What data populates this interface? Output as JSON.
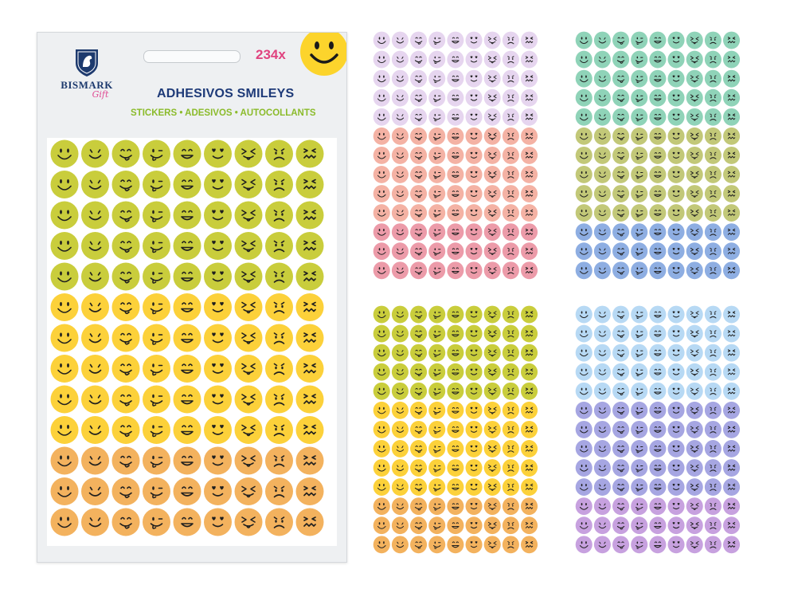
{
  "product": {
    "brand": "BISMARK",
    "brand_sub": "Gift",
    "count": "234x",
    "title": "ADHESIVOS SMILEYS",
    "subtitle": "STICKERS • ADESIVOS • AUTOCOLLANTS"
  },
  "icons": [
    "bismark-shield-icon",
    "smiley-face-icon"
  ],
  "colors": {
    "title": "#1e3a78",
    "count": "#e0437f",
    "subtitle": "#8bbb2b",
    "badge_smiley": "#fcd42c"
  },
  "face_order": [
    "big-smile",
    "smile",
    "tongue",
    "tongue-wink",
    "grin",
    "heart-eyes",
    "squint-tongue",
    "sad",
    "grimace"
  ],
  "sheets": [
    {
      "id": "package-sheet",
      "rows": [
        "#c9cd3c",
        "#c9cd3c",
        "#c9cd3c",
        "#c9cd3c",
        "#c9cd3c",
        "#fcd13a",
        "#fcd13a",
        "#fcd13a",
        "#fcd13a",
        "#fcd13a",
        "#f3b25e",
        "#f3b25e",
        "#f3b25e"
      ]
    },
    {
      "id": "sheet-pink",
      "rows": [
        "#e6d5ef",
        "#e6d5ef",
        "#e6d5ef",
        "#e6d5ef",
        "#e6d5ef",
        "#f4b2a4",
        "#f4b2a4",
        "#f4b2a4",
        "#f4b2a4",
        "#f4b2a4",
        "#ec9ba9",
        "#ec9ba9",
        "#ec9ba9"
      ]
    },
    {
      "id": "sheet-green",
      "rows": [
        "#8fd3b8",
        "#8fd3b8",
        "#8fd3b8",
        "#8fd3b8",
        "#8fd3b8",
        "#c2c878",
        "#c2c878",
        "#c2c878",
        "#c2c878",
        "#c2c878",
        "#8eaee2",
        "#8eaee2",
        "#8eaee2"
      ]
    },
    {
      "id": "sheet-yellow",
      "rows": [
        "#c9cd3c",
        "#c9cd3c",
        "#c9cd3c",
        "#c9cd3c",
        "#c9cd3c",
        "#fcd13a",
        "#fcd13a",
        "#fcd13a",
        "#fcd13a",
        "#fcd13a",
        "#f3b25e",
        "#f3b25e",
        "#f3b25e"
      ]
    },
    {
      "id": "sheet-blue",
      "rows": [
        "#b7d9f4",
        "#b7d9f4",
        "#b7d9f4",
        "#b7d9f4",
        "#b7d9f4",
        "#a6a6e2",
        "#a6a6e2",
        "#a6a6e2",
        "#a6a6e2",
        "#a6a6e2",
        "#c7a1df",
        "#c7a1df",
        "#c7a1df"
      ]
    }
  ]
}
